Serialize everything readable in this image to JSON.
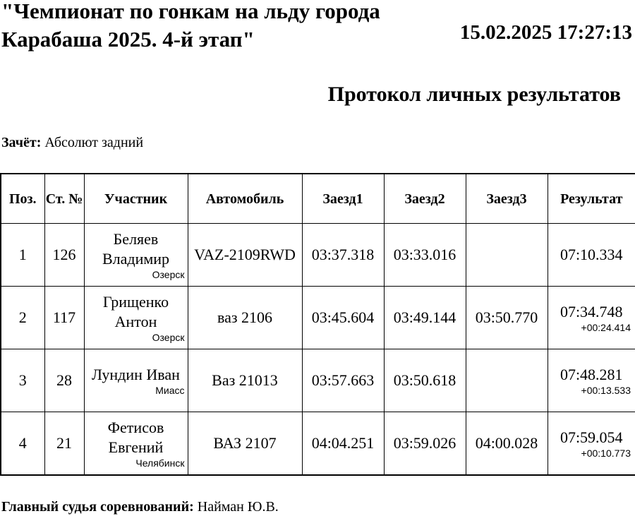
{
  "header": {
    "title": "\"Чемпионат по гонкам на льду города Карабаша 2025. 4-й этап\"",
    "datetime": "15.02.2025 17:27:13",
    "heading": "Протокол личных результатов"
  },
  "scoring": {
    "label": "Зачёт:",
    "value": "Абсолют задний"
  },
  "table": {
    "columns": [
      "Поз.",
      "Ст. №",
      "Участник",
      "Автомобиль",
      "Заезд1",
      "Заезд2",
      "Заезд3",
      "Результат"
    ],
    "rows": [
      {
        "pos": "1",
        "num": "126",
        "name": "Беляев Владимир",
        "city": "Озерск",
        "car": "VAZ-2109RWD",
        "r1": "03:37.318",
        "r2": "03:33.016",
        "r3": "",
        "result": "07:10.334",
        "gap": ""
      },
      {
        "pos": "2",
        "num": "117",
        "name": "Грищенко Антон",
        "city": "Озерск",
        "car": "ваз 2106",
        "r1": "03:45.604",
        "r2": "03:49.144",
        "r3": "03:50.770",
        "result": "07:34.748",
        "gap": "+00:24.414"
      },
      {
        "pos": "3",
        "num": "28",
        "name": "Лундин Иван",
        "city": "Миасс",
        "car": "Ваз 21013",
        "r1": "03:57.663",
        "r2": "03:50.618",
        "r3": "",
        "result": "07:48.281",
        "gap": "+00:13.533"
      },
      {
        "pos": "4",
        "num": "21",
        "name": "Фетисов Евгений",
        "city": "Челябинск",
        "car": "ВАЗ 2107",
        "r1": "04:04.251",
        "r2": "03:59.026",
        "r3": "04:00.028",
        "result": "07:59.054",
        "gap": "+00:10.773"
      }
    ]
  },
  "footer": {
    "label": "Главный судья соревнований:",
    "value": "Найман Ю.В."
  }
}
